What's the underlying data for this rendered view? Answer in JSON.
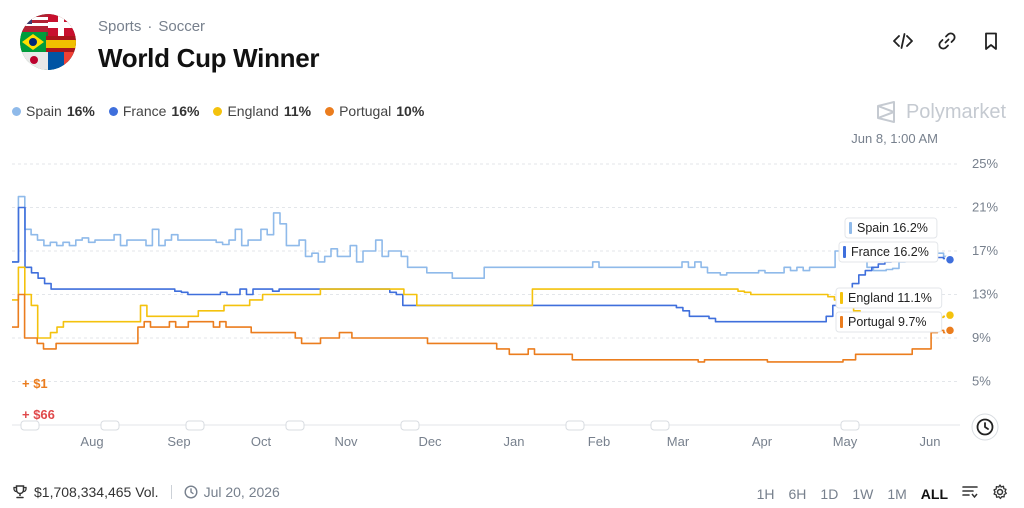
{
  "header": {
    "category": "Sports",
    "separator": "·",
    "subcategory": "Soccer",
    "title": "World Cup Winner"
  },
  "icons": {
    "embed": "code-icon",
    "link": "link-icon",
    "bookmark": "bookmark-icon",
    "clock": "clock-icon",
    "trophy": "trophy-icon",
    "calendar": "clock-icon",
    "filter": "filter-icon",
    "settings": "gear-icon"
  },
  "legend": [
    {
      "name": "Spain",
      "value": "16%",
      "color": "#8fbaea"
    },
    {
      "name": "France",
      "value": "16%",
      "color": "#3f6fdc"
    },
    {
      "name": "England",
      "value": "11%",
      "color": "#f4c20d"
    },
    {
      "name": "Portugal",
      "value": "10%",
      "color": "#eb7d1e"
    }
  ],
  "watermark": "Polymarket",
  "hover_date": "Jun 8, 1:00 AM",
  "annotations": [
    {
      "text": "+ $1",
      "color": "#eb7d1e"
    },
    {
      "text": "+ $66",
      "color": "#e0494b"
    }
  ],
  "chart_data": {
    "type": "line",
    "x_ticks": [
      "Aug",
      "Sep",
      "Oct",
      "Nov",
      "Dec",
      "Jan",
      "Feb",
      "Mar",
      "Apr",
      "May",
      "Jun"
    ],
    "y_ticks": [
      "25%",
      "21%",
      "17%",
      "13%",
      "9%",
      "5%"
    ],
    "ylim": [
      1,
      25
    ],
    "grid": true,
    "series": [
      {
        "name": "Spain",
        "color": "#8fbaea",
        "label": "Spain 16.2%",
        "values": [
          16,
          22,
          19,
          18.5,
          18,
          17.5,
          17.8,
          17.5,
          17.8,
          17.5,
          18,
          18.2,
          17.8,
          18,
          18,
          18,
          18.5,
          17.5,
          18,
          18,
          18,
          17.5,
          19,
          17.5,
          18,
          18.5,
          18,
          18,
          18,
          18,
          18,
          18,
          17.8,
          17.6,
          18,
          19,
          17.5,
          18,
          18,
          19,
          18.5,
          20.5,
          19.5,
          17.5,
          17.5,
          18,
          16.5,
          16.8,
          16,
          16.5,
          17.2,
          16.5,
          16.5,
          17.5,
          16,
          17,
          17,
          18,
          16.5,
          17,
          17,
          16.5,
          15.5,
          15.5,
          15.5,
          15,
          15,
          15,
          15,
          14.5,
          14.5,
          14.5,
          14.5,
          14.5,
          15.5,
          15.5,
          15.5,
          15.5,
          15.5,
          15.5,
          15.5,
          15.5,
          15.5,
          15.5,
          15.5,
          15.5,
          15.5,
          15.5,
          15.5,
          15.5,
          15.5,
          16,
          15.5,
          15.5,
          15.5,
          15.5,
          15.5,
          15.5,
          15.5,
          15.5,
          15.5,
          15.5,
          15.5,
          15.5,
          15.5,
          16,
          15.5,
          16,
          15.5,
          15,
          15,
          14.8,
          15,
          15,
          15,
          15,
          15,
          15.2,
          15,
          15,
          15,
          15.5,
          15.2,
          15.5,
          15.2,
          15.5,
          15.5,
          15.5,
          15.5,
          17,
          17.5,
          16.5,
          16.5,
          16.5,
          15.5,
          15.2,
          15.2,
          15.3,
          15.4,
          16,
          16.5,
          17,
          17.5,
          17.5,
          17.5,
          16.8,
          16.5,
          16.2
        ]
      },
      {
        "name": "France",
        "color": "#3f6fdc",
        "label": "France 16.2%",
        "values": [
          16,
          21,
          15.5,
          15,
          14.5,
          14,
          13.5,
          13.5,
          13.5,
          13.5,
          13.5,
          13.5,
          13.5,
          13.5,
          13.5,
          13.5,
          13.5,
          13.5,
          13.5,
          13.5,
          13.5,
          13.5,
          13.5,
          13.5,
          13.5,
          13.3,
          13.2,
          13,
          13,
          13,
          13,
          13,
          13.2,
          13,
          13,
          13.5,
          13,
          13.5,
          13.5,
          13.5,
          13.3,
          13.5,
          13.5,
          13.5,
          13.5,
          13.5,
          13.5,
          13.5,
          13.5,
          13.5,
          13.5,
          13.5,
          13.5,
          13.5,
          13.5,
          13.5,
          13.5,
          13.5,
          13.2,
          13,
          12,
          12,
          12,
          12,
          12,
          12,
          12,
          12,
          12,
          12,
          12,
          12,
          12,
          12,
          12,
          12,
          12,
          12,
          12,
          12,
          12,
          12,
          12,
          12,
          12,
          12,
          12,
          12,
          12,
          12,
          12,
          12,
          12,
          12,
          12,
          12,
          12,
          12,
          12,
          12,
          12,
          12,
          11.8,
          11.5,
          11,
          11,
          11,
          10.8,
          10.5,
          10.5,
          10.5,
          10.5,
          10.5,
          10.5,
          10.5,
          10.5,
          10.5,
          10.5,
          10.5,
          10.5,
          10.5,
          10.5,
          10.5,
          10.5,
          10.5,
          11,
          12,
          13,
          13.5,
          14,
          14.8,
          15.2,
          15.5,
          15.8,
          16,
          16.2,
          16.3,
          16.2,
          16.3,
          16.4,
          16.5,
          16.5,
          16.4,
          16.3,
          16.2
        ]
      },
      {
        "name": "England",
        "color": "#f4c20d",
        "label": "England 11.1%",
        "values": [
          12.5,
          15.5,
          13,
          12,
          9,
          9,
          9.5,
          10,
          10.5,
          10.5,
          10.5,
          10.5,
          10.5,
          10.5,
          10.5,
          10.5,
          10.5,
          10.5,
          10.5,
          10.5,
          12,
          11,
          11,
          11,
          11,
          11,
          11,
          11,
          11,
          11.5,
          11.5,
          11.5,
          11.5,
          12,
          12,
          12,
          12,
          12.5,
          12.5,
          13,
          13,
          13,
          13,
          13,
          13,
          13,
          13,
          13,
          13.5,
          13.5,
          13.5,
          13.5,
          13.5,
          13.5,
          13.5,
          13.5,
          13.5,
          13.5,
          13.5,
          13.5,
          13.5,
          13,
          13,
          12,
          12,
          12,
          12,
          12,
          12,
          12,
          12,
          12,
          12,
          12,
          12,
          12,
          12,
          12,
          12,
          12,
          12,
          13.5,
          13.5,
          13.5,
          13.5,
          13.5,
          13.5,
          13.5,
          13.5,
          13.5,
          13.5,
          13.5,
          13.5,
          13.5,
          13.5,
          13.5,
          13.5,
          13.5,
          13.5,
          13.5,
          13.5,
          13.5,
          13.5,
          13.5,
          13.5,
          13.5,
          13.5,
          13.5,
          13.5,
          13.5,
          13.5,
          13.5,
          13.5,
          13.3,
          13.2,
          13,
          13,
          13,
          13,
          13,
          13,
          13,
          13,
          13,
          13,
          13,
          13,
          12.8,
          12.5,
          12.2,
          12,
          11.5,
          11,
          10.8,
          10.5,
          10.5,
          10.5,
          10.5,
          10.5,
          10.6,
          10.7,
          10.8,
          10.8,
          10.8,
          10.9,
          11,
          11.1
        ]
      },
      {
        "name": "Portugal",
        "color": "#eb7d1e",
        "label": "Portugal 9.7%",
        "values": [
          10,
          13,
          9,
          9,
          8.5,
          8,
          8,
          8.5,
          8.5,
          8.5,
          8.5,
          8.5,
          8.5,
          8.5,
          8.5,
          8.5,
          8.5,
          8.5,
          8.5,
          8.5,
          10,
          10.5,
          10,
          10,
          10,
          10.5,
          10,
          10,
          10.5,
          10.5,
          10.5,
          10.5,
          10,
          10.5,
          10,
          10,
          10,
          10,
          9.5,
          9.5,
          9.5,
          9.5,
          9.5,
          9.5,
          9.5,
          9,
          8.5,
          8.5,
          8.5,
          9,
          9,
          9,
          9.5,
          9.5,
          9,
          9,
          9,
          9,
          9,
          9,
          9,
          9,
          9,
          9,
          9,
          9,
          8.5,
          8.5,
          8.5,
          8.5,
          8.5,
          8.5,
          8.5,
          8.5,
          8.5,
          8.5,
          8.5,
          8,
          8,
          7.5,
          7.5,
          7.5,
          8,
          7.5,
          7.5,
          7.5,
          7.5,
          7.5,
          7.5,
          7,
          7,
          7,
          7,
          7,
          7,
          7,
          7,
          7,
          7,
          7,
          7,
          7,
          7,
          7,
          7,
          7,
          7,
          7,
          7,
          6.8,
          7,
          7,
          7,
          7,
          7,
          7,
          7,
          7,
          7,
          7,
          6.8,
          6.8,
          6.8,
          6.8,
          6.8,
          6.8,
          6.8,
          6.8,
          6.8,
          6.8,
          6.8,
          6.8,
          7,
          7,
          7.5,
          7.5,
          7.5,
          7.5,
          7.5,
          7.5,
          7.5,
          7.5,
          7.5,
          8,
          8,
          8,
          9.5,
          9.7,
          9.5,
          9.7
        ]
      }
    ]
  },
  "footer": {
    "volume": "$1,708,334,465 Vol.",
    "end_date": "Jul 20, 2026",
    "ranges": [
      "1H",
      "6H",
      "1D",
      "1W",
      "1M",
      "ALL"
    ],
    "active_range": "ALL"
  }
}
